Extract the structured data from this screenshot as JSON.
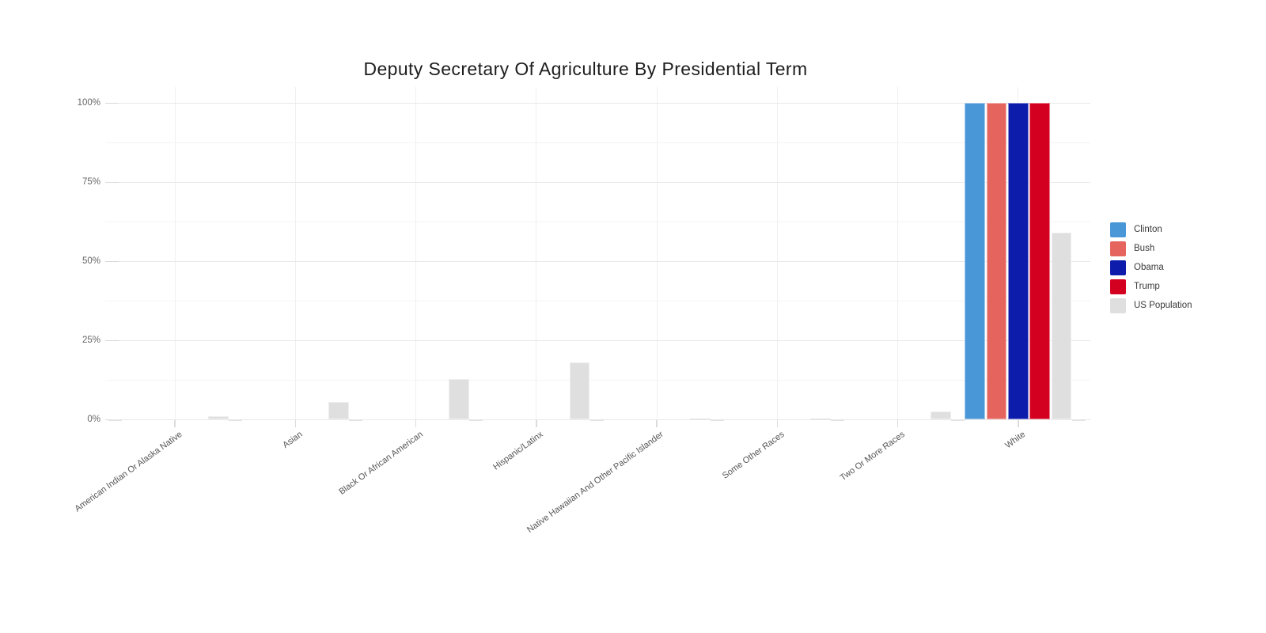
{
  "title": "Deputy Secretary Of Agriculture By Presidential Term",
  "chart_data": {
    "type": "bar",
    "title": "Deputy Secretary Of Agriculture By Presidential Term",
    "categories": [
      "American Indian Or Alaska Native",
      "Asian",
      "Black Or African American",
      "Hispanic/Latinx",
      "Native Hawaiian And Other Pacific Islander",
      "Some Other Races",
      "Two Or More Races",
      "White"
    ],
    "series": [
      {
        "name": "Clinton",
        "color": "#4a97d8",
        "values": [
          0,
          0,
          0,
          0,
          0,
          0,
          0,
          100
        ]
      },
      {
        "name": "Bush",
        "color": "#e5655e",
        "values": [
          0,
          0,
          0,
          0,
          0,
          0,
          0,
          100
        ]
      },
      {
        "name": "Obama",
        "color": "#0e1cac",
        "values": [
          0,
          0,
          0,
          0,
          0,
          0,
          0,
          100
        ]
      },
      {
        "name": "Trump",
        "color": "#d40020",
        "values": [
          0,
          0,
          0,
          0,
          0,
          0,
          0,
          100
        ]
      },
      {
        "name": "US Population",
        "color": "#dfdfdf",
        "values": [
          1.1,
          5.6,
          12.8,
          17.9,
          0.2,
          0.3,
          2.5,
          58.9
        ]
      }
    ],
    "xlabel": "",
    "ylabel": "",
    "ylim": [
      0,
      100
    ],
    "yticks": [
      {
        "value": 0,
        "label": "0%"
      },
      {
        "value": 25,
        "label": "25%"
      },
      {
        "value": 50,
        "label": "50%"
      },
      {
        "value": 75,
        "label": "75%"
      },
      {
        "value": 100,
        "label": "100%"
      }
    ],
    "yticks_minor": [
      12.5,
      37.5,
      62.5,
      87.5
    ],
    "grid": true,
    "legend_position": "right"
  }
}
